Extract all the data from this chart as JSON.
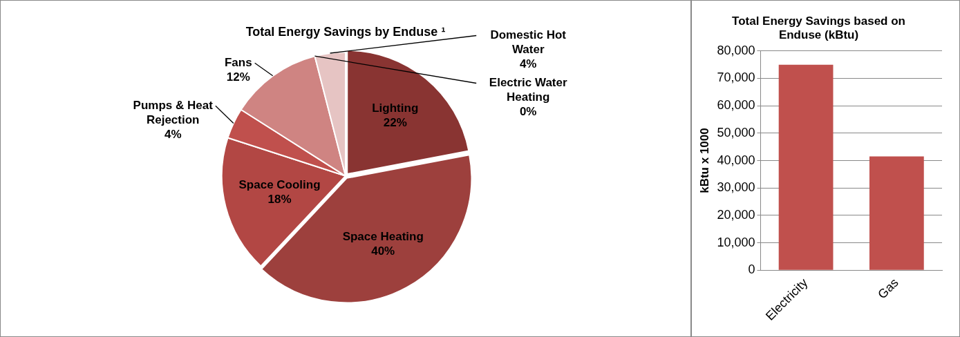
{
  "chart_data": [
    {
      "type": "pie",
      "title": "Total Energy Savings by Enduse ¹",
      "categories": [
        "Lighting",
        "Space Heating",
        "Space Cooling",
        "Pumps & Heat Rejection",
        "Fans",
        "Electric Water Heating",
        "Domestic Hot Water"
      ],
      "values": [
        22,
        40,
        18,
        4,
        12,
        0,
        4
      ],
      "colors": [
        "#893432",
        "#9d403d",
        "#b24744",
        "#c0504d",
        "#cf8482",
        "#dcaaa9",
        "#e6c4c3"
      ],
      "value_labels": [
        "22%",
        "40%",
        "18%",
        "4%",
        "12%",
        "0%",
        "4%"
      ],
      "legend": false
    },
    {
      "type": "bar",
      "title": "Total Energy Savings based on Enduse (kBtu)",
      "ylabel": "kBtu x 1000",
      "categories": [
        "Electricity",
        "Gas"
      ],
      "values": [
        75000,
        41500
      ],
      "color": "#c0504d",
      "ylim": [
        0,
        80000
      ],
      "yticks": [
        0,
        {
          "value": 10000,
          "label": "10,000"
        },
        {
          "value": 20000,
          "label": "20,000"
        },
        {
          "value": 30000,
          "label": "30,000"
        },
        {
          "value": 40000,
          "label": "40,000"
        },
        {
          "value": 50000,
          "label": "50,000"
        },
        {
          "value": 60000,
          "label": "60,000"
        },
        {
          "value": 70000,
          "label": "70,000"
        },
        {
          "value": 80000,
          "label": "80,000"
        }
      ],
      "grid": "y",
      "legend": false
    }
  ]
}
